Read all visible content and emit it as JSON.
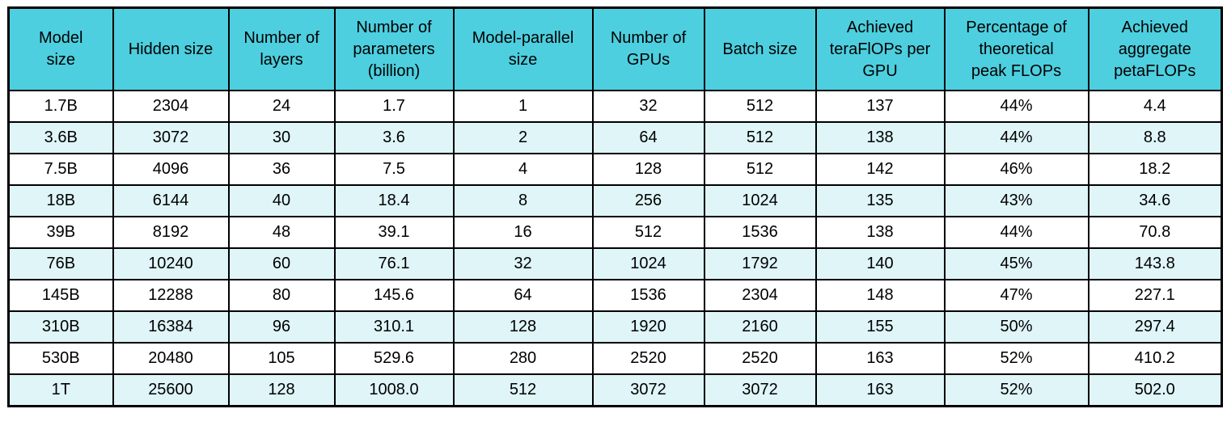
{
  "table": {
    "title": "model-scaling-configuration-table",
    "columns": [
      "Model\nsize",
      "Hidden size",
      "Number of\nlayers",
      "Number of\nparameters\n(billion)",
      "Model-parallel\nsize",
      "Number of\nGPUs",
      "Batch size",
      "Achieved\nteraFlOPs per\nGPU",
      "Percentage of\ntheoretical\npeak FLOPs",
      "Achieved\naggregate\npetaFLOPs"
    ],
    "rows": [
      [
        "1.7B",
        "2304",
        "24",
        "1.7",
        "1",
        "32",
        "512",
        "137",
        "44%",
        "4.4"
      ],
      [
        "3.6B",
        "3072",
        "30",
        "3.6",
        "2",
        "64",
        "512",
        "138",
        "44%",
        "8.8"
      ],
      [
        "7.5B",
        "4096",
        "36",
        "7.5",
        "4",
        "128",
        "512",
        "142",
        "46%",
        "18.2"
      ],
      [
        "18B",
        "6144",
        "40",
        "18.4",
        "8",
        "256",
        "1024",
        "135",
        "43%",
        "34.6"
      ],
      [
        "39B",
        "8192",
        "48",
        "39.1",
        "16",
        "512",
        "1536",
        "138",
        "44%",
        "70.8"
      ],
      [
        "76B",
        "10240",
        "60",
        "76.1",
        "32",
        "1024",
        "1792",
        "140",
        "45%",
        "143.8"
      ],
      [
        "145B",
        "12288",
        "80",
        "145.6",
        "64",
        "1536",
        "2304",
        "148",
        "47%",
        "227.1"
      ],
      [
        "310B",
        "16384",
        "96",
        "310.1",
        "128",
        "1920",
        "2160",
        "155",
        "50%",
        "297.4"
      ],
      [
        "530B",
        "20480",
        "105",
        "529.6",
        "280",
        "2520",
        "2520",
        "163",
        "52%",
        "410.2"
      ],
      [
        "1T",
        "25600",
        "128",
        "1008.0",
        "512",
        "3072",
        "3072",
        "163",
        "52%",
        "502.0"
      ]
    ],
    "colors": {
      "header_bg": "#4dcfdf",
      "row_bg": "#ffffff",
      "row_alt_bg": "#dff5f8",
      "border": "#000000",
      "text": "#000000"
    }
  }
}
